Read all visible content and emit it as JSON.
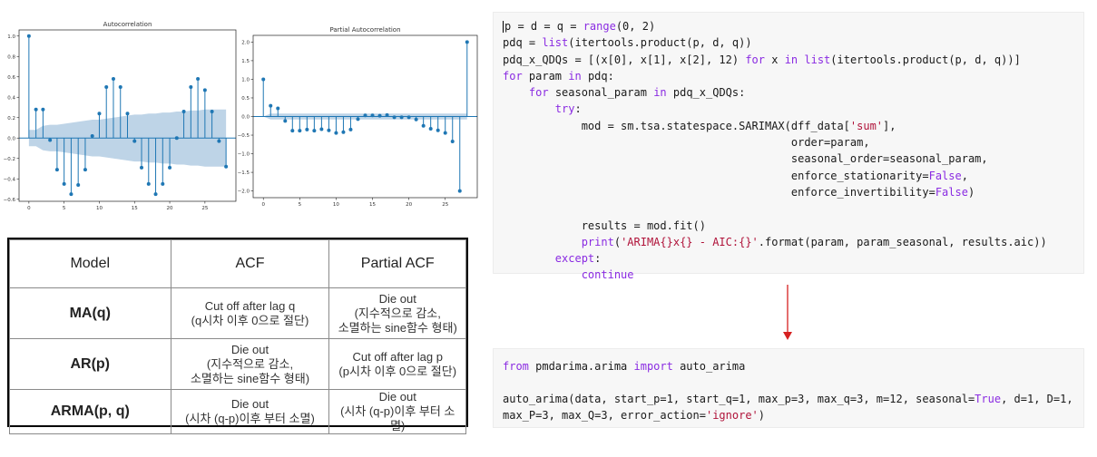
{
  "chart_data": [
    {
      "type": "bar",
      "title": "Autocorrelation",
      "x": [
        0,
        1,
        2,
        3,
        4,
        5,
        6,
        7,
        8,
        9,
        10,
        11,
        12,
        13,
        14,
        15,
        16,
        17,
        18,
        19,
        20,
        21,
        22,
        23,
        24,
        25,
        26,
        27,
        28
      ],
      "values": [
        1.0,
        0.28,
        0.28,
        -0.02,
        -0.31,
        -0.45,
        -0.55,
        -0.46,
        -0.31,
        0.02,
        0.24,
        0.5,
        0.58,
        0.5,
        0.24,
        -0.03,
        -0.29,
        -0.45,
        -0.55,
        -0.45,
        -0.29,
        0.0,
        0.26,
        0.5,
        0.58,
        0.47,
        0.26,
        -0.03,
        -0.28
      ],
      "conf_band_upper": [
        0.08,
        0.08,
        0.12,
        0.13,
        0.13,
        0.14,
        0.15,
        0.16,
        0.17,
        0.18,
        0.18,
        0.19,
        0.2,
        0.21,
        0.22,
        0.23,
        0.23,
        0.24,
        0.24,
        0.25,
        0.25,
        0.26,
        0.26,
        0.27,
        0.27,
        0.28,
        0.28,
        0.28,
        0.28
      ],
      "xlim": [
        -1.4,
        29.4
      ],
      "ylim": [
        -0.62,
        1.06
      ],
      "xticks": [
        0,
        5,
        10,
        15,
        20,
        25
      ],
      "yticks": [
        1.0,
        0.8,
        0.6,
        0.4,
        0.2,
        0.0,
        -0.2,
        -0.4,
        -0.6
      ],
      "ytick_labels": [
        "1.0",
        "0.8",
        "0.6",
        "0.4",
        "0.2",
        "0.0",
        "−0.2",
        "−0.4",
        "−0.6"
      ],
      "color": "#1f77b4"
    },
    {
      "type": "bar",
      "title": "Partial Autocorrelation",
      "x": [
        0,
        1,
        2,
        3,
        4,
        5,
        6,
        7,
        8,
        9,
        10,
        11,
        12,
        13,
        14,
        15,
        16,
        17,
        18,
        19,
        20,
        21,
        22,
        23,
        24,
        25,
        26,
        27,
        28
      ],
      "values": [
        1.0,
        0.29,
        0.22,
        -0.12,
        -0.38,
        -0.38,
        -0.35,
        -0.38,
        -0.34,
        -0.37,
        -0.44,
        -0.42,
        -0.35,
        -0.07,
        0.03,
        0.03,
        0.02,
        0.04,
        -0.02,
        -0.02,
        -0.02,
        -0.08,
        -0.25,
        -0.33,
        -0.37,
        -0.44,
        -0.67,
        -2.0,
        2.0
      ],
      "conf_band_upper": [
        0.0,
        0.08,
        0.08,
        0.08,
        0.08,
        0.08,
        0.08,
        0.08,
        0.08,
        0.08,
        0.08,
        0.08,
        0.08,
        0.08,
        0.08,
        0.08,
        0.08,
        0.08,
        0.08,
        0.08,
        0.08,
        0.08,
        0.08,
        0.08,
        0.08,
        0.08,
        0.08,
        0.08,
        0.08
      ],
      "xlim": [
        -1.4,
        29.4
      ],
      "ylim": [
        -2.18,
        2.18
      ],
      "xticks": [
        0,
        5,
        10,
        15,
        20,
        25
      ],
      "yticks": [
        2.0,
        1.5,
        1.0,
        0.5,
        0.0,
        -0.5,
        -1.0,
        -1.5,
        -2.0
      ],
      "ytick_labels": [
        "2.0",
        "1.5",
        "1.0",
        "0.5",
        "0.0",
        "−0.5",
        "−1.0",
        "−1.5",
        "−2.0"
      ],
      "color": "#1f77b4"
    }
  ],
  "table": {
    "headers": [
      "Model",
      "ACF",
      "Partial ACF"
    ],
    "rows": [
      {
        "model": "MA(q)",
        "acf": [
          "Cut off after lag q",
          "(q시차 이후 0으로 절단)"
        ],
        "pacf": [
          "Die out",
          "(지수적으로 감소,",
          "소멸하는 sine함수 형태)"
        ]
      },
      {
        "model": "AR(p)",
        "acf": [
          "Die out",
          "(지수적으로 감소,",
          "소멸하는 sine함수 형태)"
        ],
        "pacf": [
          "Cut off after lag p",
          "(p시차 이후 0으로 절단)"
        ]
      },
      {
        "model": "ARMA(p, q)",
        "acf": [
          "Die out",
          "(시차 (q-p)이후 부터 소멸)"
        ],
        "pacf": [
          "Die out",
          "(시차 (q-p)이후 부터 소멸)"
        ]
      }
    ]
  },
  "code_top": [
    [
      {
        "t": "p = d = q = "
      },
      {
        "t": "range",
        "c": "kw"
      },
      {
        "t": "(0, 2)"
      }
    ],
    [
      {
        "t": "pdq = "
      },
      {
        "t": "list",
        "c": "kw"
      },
      {
        "t": "(itertools.product(p, d, q))"
      }
    ],
    [
      {
        "t": "pdq_x_QDQs = [(x[0], x[1], x[2], 12) "
      },
      {
        "t": "for",
        "c": "kw"
      },
      {
        "t": " x "
      },
      {
        "t": "in",
        "c": "kw"
      },
      {
        "t": " "
      },
      {
        "t": "list",
        "c": "kw"
      },
      {
        "t": "(itertools.product(p, d, q))]"
      }
    ],
    [
      {
        "t": "for",
        "c": "kw"
      },
      {
        "t": " param "
      },
      {
        "t": "in",
        "c": "kw"
      },
      {
        "t": " pdq:"
      }
    ],
    [
      {
        "t": "    "
      },
      {
        "t": "for",
        "c": "kw"
      },
      {
        "t": " seasonal_param "
      },
      {
        "t": "in",
        "c": "kw"
      },
      {
        "t": " pdq_x_QDQs:"
      }
    ],
    [
      {
        "t": "        "
      },
      {
        "t": "try",
        "c": "kw"
      },
      {
        "t": ":"
      }
    ],
    [
      {
        "t": "            mod = sm.tsa.statespace.SARIMAX(dff_data["
      },
      {
        "t": "'sum'",
        "c": "str"
      },
      {
        "t": "],"
      }
    ],
    [
      {
        "t": "                                            order=param,"
      }
    ],
    [
      {
        "t": "                                            seasonal_order=seasonal_param,"
      }
    ],
    [
      {
        "t": "                                            enforce_stationarity="
      },
      {
        "t": "False",
        "c": "kw"
      },
      {
        "t": ","
      }
    ],
    [
      {
        "t": "                                            enforce_invertibility="
      },
      {
        "t": "False",
        "c": "kw"
      },
      {
        "t": ")"
      }
    ],
    [
      {
        "t": ""
      }
    ],
    [
      {
        "t": "            results = mod.fit()"
      }
    ],
    [
      {
        "t": "            "
      },
      {
        "t": "print",
        "c": "kw"
      },
      {
        "t": "("
      },
      {
        "t": "'ARIMA{}x{} - AIC:{}'",
        "c": "str"
      },
      {
        "t": ".format(param, param_seasonal, results.aic))"
      }
    ],
    [
      {
        "t": "        "
      },
      {
        "t": "except",
        "c": "kw"
      },
      {
        "t": ":"
      }
    ],
    [
      {
        "t": "            "
      },
      {
        "t": "continue",
        "c": "kw"
      }
    ]
  ],
  "code_bottom": [
    [
      {
        "t": "from",
        "c": "kw"
      },
      {
        "t": " pmdarima.arima "
      },
      {
        "t": "import",
        "c": "kw"
      },
      {
        "t": " auto_arima"
      }
    ],
    [
      {
        "t": ""
      }
    ],
    [
      {
        "t": "auto_arima(data, start_p=1, start_q=1, max_p=3, max_q=3, m=12, seasonal="
      },
      {
        "t": "True",
        "c": "kw"
      },
      {
        "t": ", d=1, D=1,"
      }
    ],
    [
      {
        "t": "max_P=3, max_Q=3, error_action="
      },
      {
        "t": "'ignore'",
        "c": "str"
      },
      {
        "t": ")"
      }
    ]
  ],
  "colors": {
    "accent": "#1f77b4",
    "band": "#b3cde3",
    "arrow": "#d62020",
    "code_bg": "#f7f7f7"
  }
}
